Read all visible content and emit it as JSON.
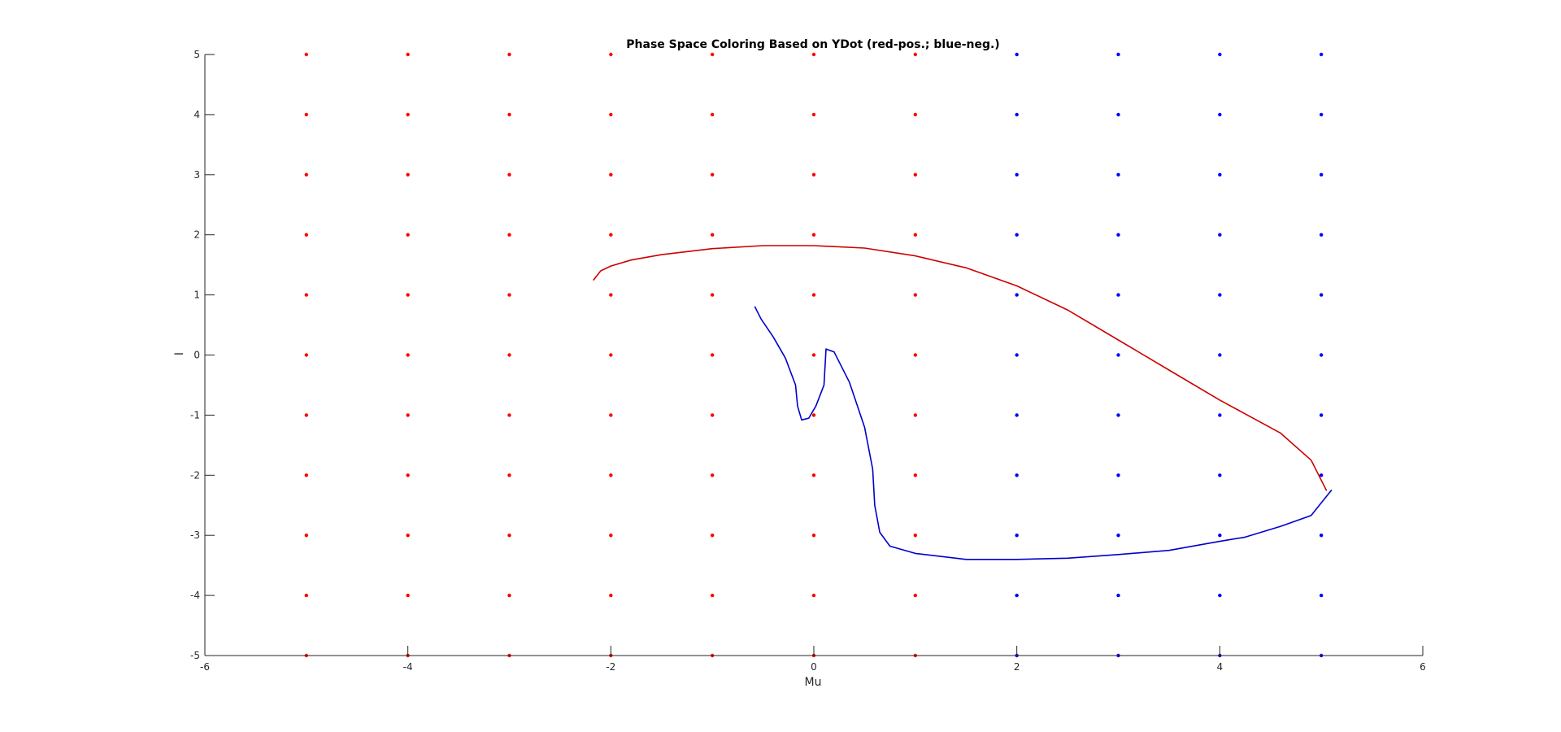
{
  "chart_data": {
    "type": "scatter",
    "title": "Phase Space Coloring Based on YDot (red-pos.; blue-neg.)",
    "xlabel": "Mu",
    "ylabel": "I",
    "xlim": [
      -6,
      6
    ],
    "ylim": [
      -5,
      5
    ],
    "xticks": [
      -6,
      -4,
      -2,
      0,
      2,
      4,
      6
    ],
    "yticks": [
      -5,
      -4,
      -3,
      -2,
      -1,
      0,
      1,
      2,
      3,
      4,
      5
    ],
    "grid": false,
    "colors": {
      "positive": "#ff0000",
      "negative": "#0000ff",
      "trajectory_pos": "#cc0000",
      "trajectory_neg": "#0000cc"
    },
    "grid_points": {
      "x": [
        -5,
        -4,
        -3,
        -2,
        -1,
        0,
        1,
        2,
        3,
        4,
        5
      ],
      "y": [
        -5,
        -4,
        -3,
        -2,
        -1,
        0,
        1,
        2,
        3,
        4,
        5
      ],
      "negative_x_min": 2
    },
    "series": [
      {
        "color": "#cc0000",
        "x": [
          -2.17,
          -2.1,
          -2.0,
          -1.8,
          -1.5,
          -1.0,
          -0.5,
          0.0,
          0.5,
          1.0,
          1.5,
          2.0,
          2.5,
          3.0,
          3.5,
          4.0,
          4.6,
          4.9,
          5.05
        ],
        "y": [
          1.25,
          1.4,
          1.48,
          1.58,
          1.67,
          1.77,
          1.82,
          1.82,
          1.78,
          1.65,
          1.45,
          1.15,
          0.75,
          0.25,
          -0.25,
          -0.75,
          -1.3,
          -1.75,
          -2.25
        ]
      },
      {
        "color": "#0000cc",
        "x": [
          -0.58,
          -0.52,
          -0.4,
          -0.28,
          -0.18,
          -0.16,
          -0.12,
          -0.05,
          0.02,
          0.1,
          0.12,
          0.2,
          0.35,
          0.5,
          0.58,
          0.6,
          0.65,
          0.75,
          1.0,
          1.5,
          2.0,
          2.5,
          3.0,
          3.5,
          4.0,
          4.25,
          4.6,
          4.9,
          5.1
        ],
        "y": [
          0.8,
          0.6,
          0.3,
          -0.05,
          -0.5,
          -0.85,
          -1.08,
          -1.05,
          -0.85,
          -0.5,
          0.1,
          0.05,
          -0.45,
          -1.2,
          -1.9,
          -2.5,
          -2.95,
          -3.18,
          -3.3,
          -3.4,
          -3.4,
          -3.38,
          -3.32,
          -3.25,
          -3.1,
          -3.03,
          -2.85,
          -2.67,
          -2.25
        ]
      }
    ]
  }
}
